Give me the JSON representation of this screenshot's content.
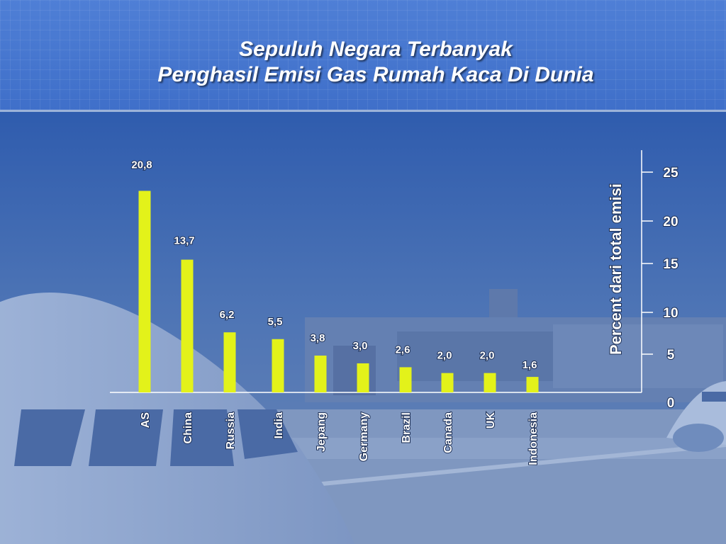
{
  "slide": {
    "title_line1": "Sepuluh Negara Terbanyak",
    "title_line2": "Penghasil Emisi Gas Rumah Kaca Di Dunia"
  },
  "colors": {
    "bar": "#e3f21a",
    "header": "#4a7ad3",
    "background": "#5a78a8",
    "text": "#ffffff"
  },
  "chart_data": {
    "type": "bar",
    "title": "Sepuluh Negara Terbanyak Penghasil Emisi Gas Rumah Kaca Di Dunia",
    "categories": [
      "AS",
      "China",
      "Russia",
      "India",
      "Jepang",
      "Germany",
      "Brazil",
      "Canada",
      "UK",
      "Indonesia"
    ],
    "values": [
      20.8,
      13.7,
      6.2,
      5.5,
      3.8,
      3.0,
      2.6,
      2.0,
      2.0,
      1.6
    ],
    "value_labels": [
      "20,8",
      "13,7",
      "6,2",
      "5,5",
      "3,8",
      "3,0",
      "2,6",
      "2,0",
      "2,0",
      "1,6"
    ],
    "ylabel": "Percent dari total emisi",
    "ylim": [
      0,
      25
    ],
    "yticks": [
      "0",
      "5",
      "10",
      "15",
      "20",
      "25"
    ],
    "y_axis_position": "right",
    "grid": false,
    "legend": "none"
  }
}
